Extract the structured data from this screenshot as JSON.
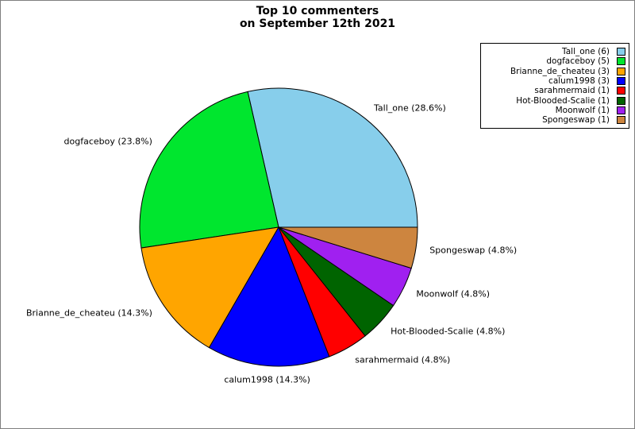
{
  "figure": {
    "title_line1": "Top 10 commenters",
    "title_line2": "on September 12th 2021"
  },
  "chart_data": {
    "type": "pie",
    "title": "Top 10 commenters on September 12th 2021",
    "total": 21,
    "start_angle_deg": 0,
    "direction": "counterclockwise",
    "legend_position": "upper-right",
    "legend_marker_side": "right",
    "edge_color": "#000000",
    "background_color": "#FFFFFF",
    "border_color": "#7F7F7F",
    "slices": [
      {
        "label": "Tall_one",
        "value": 6,
        "pct": 28.6,
        "slice_label": "Tall_one (28.6%)",
        "legend_label": "Tall_one (6)",
        "color": "#87CEEB"
      },
      {
        "label": "dogfaceboy",
        "value": 5,
        "pct": 23.8,
        "slice_label": "dogfaceboy (23.8%)",
        "legend_label": "dogfaceboy (5)",
        "color": "#00E62E"
      },
      {
        "label": "Brianne_de_cheateu",
        "value": 3,
        "pct": 14.3,
        "slice_label": "Brianne_de_cheateu (14.3%)",
        "legend_label": "Brianne_de_cheateu (3)",
        "color": "#FFA500"
      },
      {
        "label": "calum1998",
        "value": 3,
        "pct": 14.3,
        "slice_label": "calum1998 (14.3%)",
        "legend_label": "calum1998 (3)",
        "color": "#0000FF"
      },
      {
        "label": "sarahmermaid",
        "value": 1,
        "pct": 4.8,
        "slice_label": "sarahmermaid (4.8%)",
        "legend_label": "sarahmermaid (1)",
        "color": "#FF0000"
      },
      {
        "label": "Hot-Blooded-Scalie",
        "value": 1,
        "pct": 4.8,
        "slice_label": "Hot-Blooded-Scalie (4.8%)",
        "legend_label": "Hot-Blooded-Scalie (1)",
        "color": "#006400"
      },
      {
        "label": "Moonwolf",
        "value": 1,
        "pct": 4.8,
        "slice_label": "Moonwolf (4.8%)",
        "legend_label": "Moonwolf (1)",
        "color": "#A020F0"
      },
      {
        "label": "Spongeswap",
        "value": 1,
        "pct": 4.8,
        "slice_label": "Spongeswap (4.8%)",
        "legend_label": "Spongeswap (1)",
        "color": "#CD853F"
      }
    ]
  }
}
